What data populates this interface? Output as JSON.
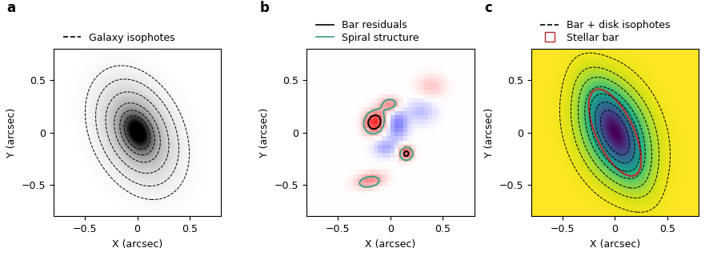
{
  "chart_data": [
    {
      "type": "image",
      "panel": "a",
      "xlabel": "X (arcsec)",
      "ylabel": "Y (arcsec)",
      "xlim": [
        -0.8,
        0.8
      ],
      "ylim": [
        -0.8,
        0.8
      ],
      "xticks": [
        {
          "value": -0.5,
          "label": "−0.5"
        },
        0,
        0.5
      ],
      "yticks": [
        {
          "value": -0.5,
          "label": "−0.5"
        },
        0,
        0.5
      ],
      "clim": [
        0,
        1.2
      ],
      "components": [
        {
          "x": 0,
          "y": 0,
          "amplitude": 1.0,
          "a": 0.12,
          "b": 0.08,
          "angle": 115
        },
        {
          "x": 0,
          "y": 0,
          "amplitude": 0.5,
          "a": 0.3,
          "b": 0.2,
          "angle": 115
        }
      ],
      "legend": "top",
      "series": [
        {
          "name": "Galaxy isophotes",
          "type": "contour",
          "color": "#000000",
          "line_style": "dashed",
          "levels": [
            0.04,
            0.1,
            0.2,
            0.35,
            0.55,
            0.8
          ]
        }
      ]
    },
    {
      "type": "image",
      "panel": "b",
      "xlabel": "X (arcsec)",
      "ylabel": "Y (arcsec)",
      "xlim": [
        -0.8,
        0.8
      ],
      "ylim": [
        -0.8,
        0.8
      ],
      "xticks": [
        {
          "value": -0.5,
          "label": "−0.5"
        },
        0,
        0.5
      ],
      "yticks": [
        {
          "value": -0.5,
          "label": "−0.5"
        },
        0,
        0.5
      ],
      "clim": [
        -1.2,
        1.2
      ],
      "components": [
        {
          "x": -0.15,
          "y": 0.1,
          "amplitude": 1.0,
          "a": 0.08,
          "b": 0.07,
          "angle": 60
        },
        {
          "x": 0.0,
          "y": 0.27,
          "amplitude": 0.55,
          "a": 0.07,
          "b": 0.05,
          "angle": 0
        },
        {
          "x": 0.15,
          "y": -0.2,
          "amplitude": 0.8,
          "a": 0.05,
          "b": 0.05,
          "angle": 0
        },
        {
          "x": -0.2,
          "y": -0.47,
          "amplitude": 0.55,
          "a": 0.1,
          "b": 0.05,
          "angle": 10
        },
        {
          "x": 0.07,
          "y": 0.07,
          "amplitude": -0.6,
          "a": 0.07,
          "b": 0.1,
          "angle": 0
        },
        {
          "x": -0.05,
          "y": -0.15,
          "amplitude": -0.4,
          "a": 0.08,
          "b": 0.06,
          "angle": 0
        },
        {
          "x": 0.3,
          "y": 0.2,
          "amplitude": -0.3,
          "a": 0.1,
          "b": 0.08,
          "angle": 0
        },
        {
          "x": 0.4,
          "y": 0.45,
          "amplitude": 0.25,
          "a": 0.1,
          "b": 0.08,
          "angle": 0
        }
      ],
      "legend": "top",
      "series": [
        {
          "name": "Bar residuals",
          "type": "contour",
          "color": "#000000",
          "line_style": "solid",
          "levels": [
            0.7
          ]
        },
        {
          "name": "Spiral structure",
          "type": "contour",
          "color": "#3a9e7e",
          "line_style": "solid",
          "levels": [
            0.35
          ]
        }
      ]
    },
    {
      "type": "image",
      "panel": "c",
      "xlabel": "X (arcsec)",
      "ylabel": "Y (arcsec)",
      "xlim": [
        -0.8,
        0.8
      ],
      "ylim": [
        -0.8,
        0.8
      ],
      "xticks": [
        {
          "value": -0.5,
          "label": "−0.5"
        },
        0,
        0.5
      ],
      "yticks": [
        {
          "value": -0.5,
          "label": "−0.5"
        },
        0,
        0.5
      ],
      "clim": [
        0,
        1.2
      ],
      "components": [
        {
          "x": 0,
          "y": 0,
          "amplitude": 0.6,
          "a": 0.3,
          "b": 0.12,
          "angle": 115
        },
        {
          "x": 0,
          "y": 0,
          "amplitude": 0.6,
          "a": 0.3,
          "b": 0.2,
          "angle": 110
        }
      ],
      "legend": "top",
      "series": [
        {
          "name": "Bar + disk isophotes",
          "type": "contour",
          "color": "#000000",
          "line_style": "dashed",
          "levels": [
            0.03,
            0.1,
            0.2,
            0.35,
            0.5,
            0.7,
            0.9
          ]
        },
        {
          "name": "Stellar bar",
          "type": "ellipse",
          "color": "#c0282d",
          "marker": "square",
          "x": 0,
          "y": 0,
          "a": 0.45,
          "b": 0.18,
          "angle": 115
        }
      ]
    }
  ]
}
